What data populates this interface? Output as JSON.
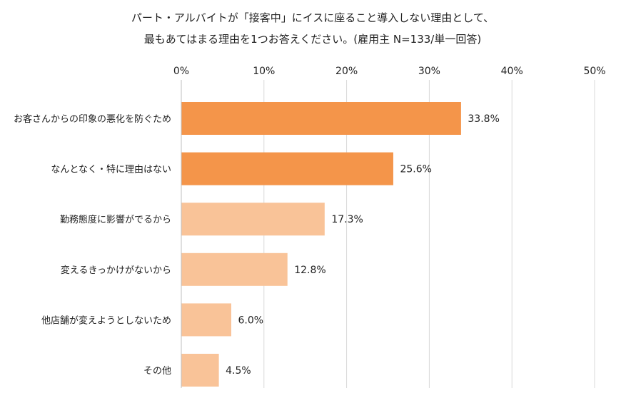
{
  "chart_data": {
    "type": "bar",
    "orientation": "horizontal",
    "title_lines": [
      "パート・アルバイトが「接客中」にイスに座ること導入しない理由として、",
      "最もあてはまる理由を1つお答えください。(雇用主 N=133/単一回答)"
    ],
    "categories": [
      "お客さんからの印象の悪化を防ぐため",
      "なんとなく・特に理由はない",
      "勤務態度に影響がでるから",
      "変えるきっかけがないから",
      "他店舗が変えようとしないため",
      "その他"
    ],
    "values": [
      33.8,
      25.6,
      17.3,
      12.8,
      6.0,
      4.5
    ],
    "value_labels": [
      "33.8%",
      "25.6%",
      "17.3%",
      "12.8%",
      "6.0%",
      "4.5%"
    ],
    "x_ticks": [
      "0%",
      "10%",
      "20%",
      "30%",
      "40%",
      "50%"
    ],
    "xlim": [
      0,
      50
    ],
    "x_axis_position": "top",
    "grid": true,
    "colors": {
      "highlight": "#f4954a",
      "normal": "#f9c398",
      "grid": "#d9d9d9",
      "text": "#222222"
    },
    "highlighted_bars": [
      0,
      1
    ]
  }
}
